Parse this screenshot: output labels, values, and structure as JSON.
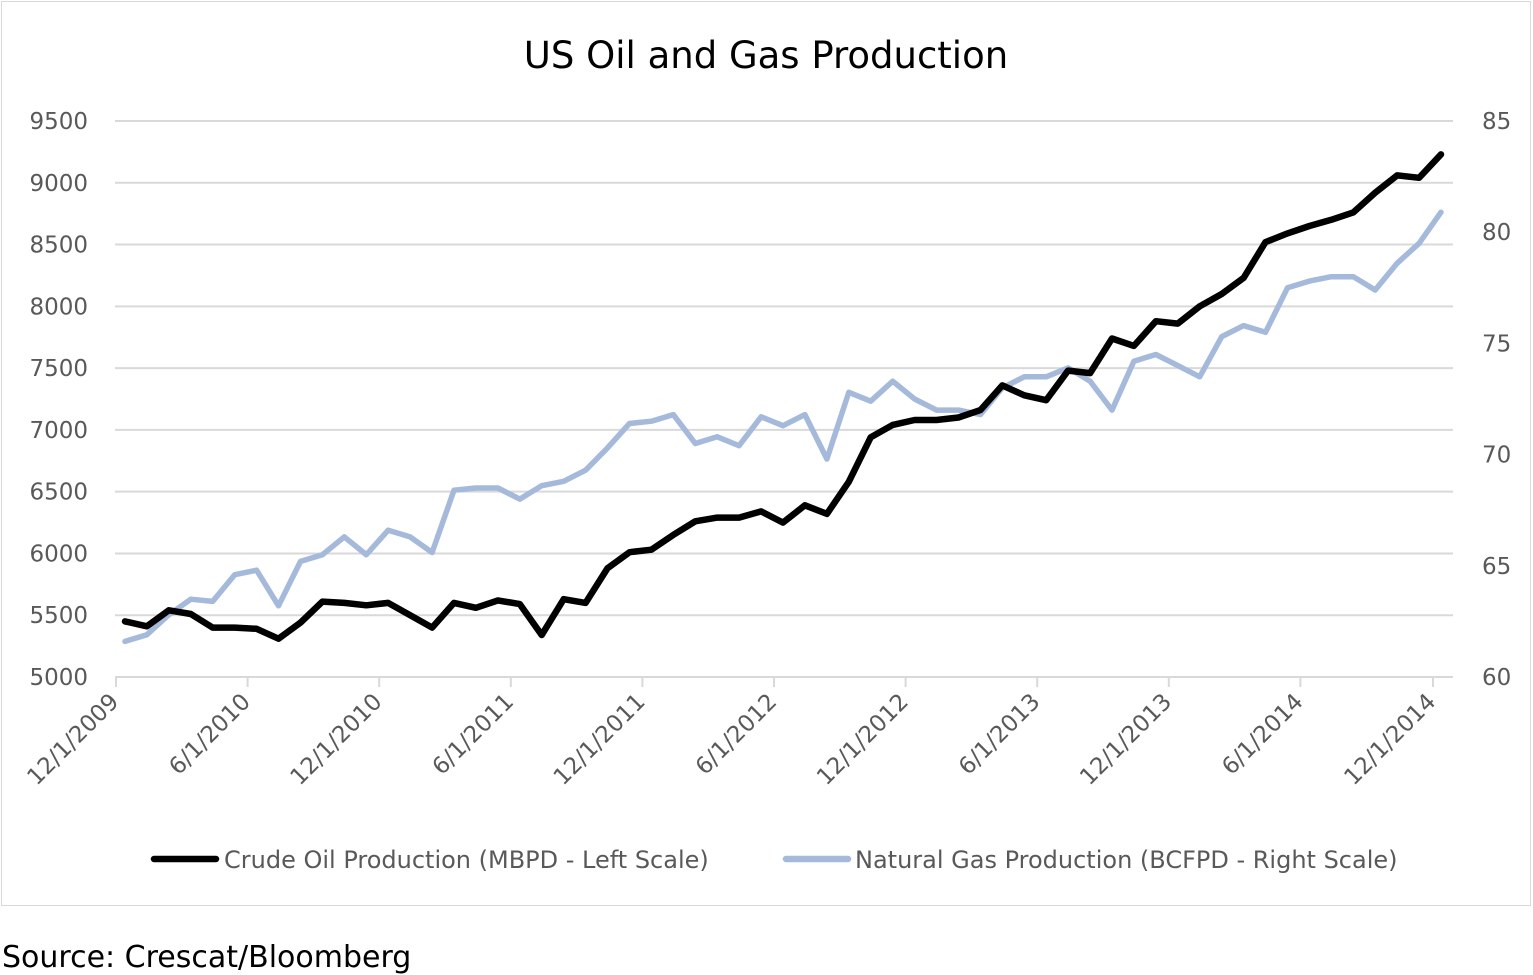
{
  "chart_data": {
    "type": "line",
    "title": "US Oil and Gas Production",
    "source": "Source: Crescat/Bloomberg",
    "x_tick_labels": [
      "12/1/2009",
      "6/1/2010",
      "12/1/2010",
      "6/1/2011",
      "12/1/2011",
      "6/1/2012",
      "12/1/2012",
      "6/1/2013",
      "12/1/2013",
      "6/1/2014",
      "12/1/2014"
    ],
    "x_start": "2009-12-01",
    "x_end": "2014-12-01",
    "x_step": "monthly",
    "y_left": {
      "min": 5000,
      "max": 9500,
      "ticks": [
        5000,
        5500,
        6000,
        6500,
        7000,
        7500,
        8000,
        8500,
        9000,
        9500
      ]
    },
    "y_right": {
      "min": 60,
      "max": 85,
      "ticks": [
        60,
        65,
        70,
        75,
        80,
        85
      ]
    },
    "grid": true,
    "legend_position": "bottom",
    "series": [
      {
        "name": "Crude Oil Production (MBPD - Left Scale)",
        "axis": "left",
        "color": "#000000",
        "values": [
          5450,
          5410,
          5540,
          5510,
          5400,
          5400,
          5390,
          5310,
          5440,
          5610,
          5600,
          5580,
          5600,
          5500,
          5400,
          5600,
          5560,
          5620,
          5590,
          5340,
          5630,
          5600,
          5880,
          6010,
          6030,
          6150,
          6260,
          6290,
          6290,
          6340,
          6250,
          6390,
          6320,
          6580,
          6940,
          7040,
          7080,
          7080,
          7100,
          7160,
          7360,
          7280,
          7240,
          7480,
          7460,
          7740,
          7680,
          7880,
          7860,
          8000,
          8100,
          8230,
          8520,
          8590,
          8650,
          8700,
          8760,
          8920,
          9060,
          9040,
          9230
        ]
      },
      {
        "name": "Natural Gas Production (BCFPD - Right Scale)",
        "axis": "right",
        "color": "#a5b9db",
        "values": [
          61.6,
          61.9,
          62.8,
          63.5,
          63.4,
          64.6,
          64.8,
          63.2,
          65.2,
          65.5,
          66.3,
          65.5,
          66.6,
          66.3,
          65.6,
          68.4,
          68.5,
          68.5,
          68.0,
          68.6,
          68.8,
          69.3,
          70.3,
          71.4,
          71.5,
          71.8,
          70.5,
          70.8,
          70.4,
          71.7,
          71.3,
          71.8,
          69.8,
          72.8,
          72.4,
          73.3,
          72.5,
          72.0,
          72.0,
          71.8,
          73.0,
          73.5,
          73.5,
          73.9,
          73.3,
          72.0,
          74.2,
          74.5,
          74.0,
          73.5,
          75.3,
          75.8,
          75.5,
          77.5,
          77.8,
          78.0,
          78.0,
          77.4,
          78.6,
          79.5,
          80.9
        ]
      }
    ]
  }
}
